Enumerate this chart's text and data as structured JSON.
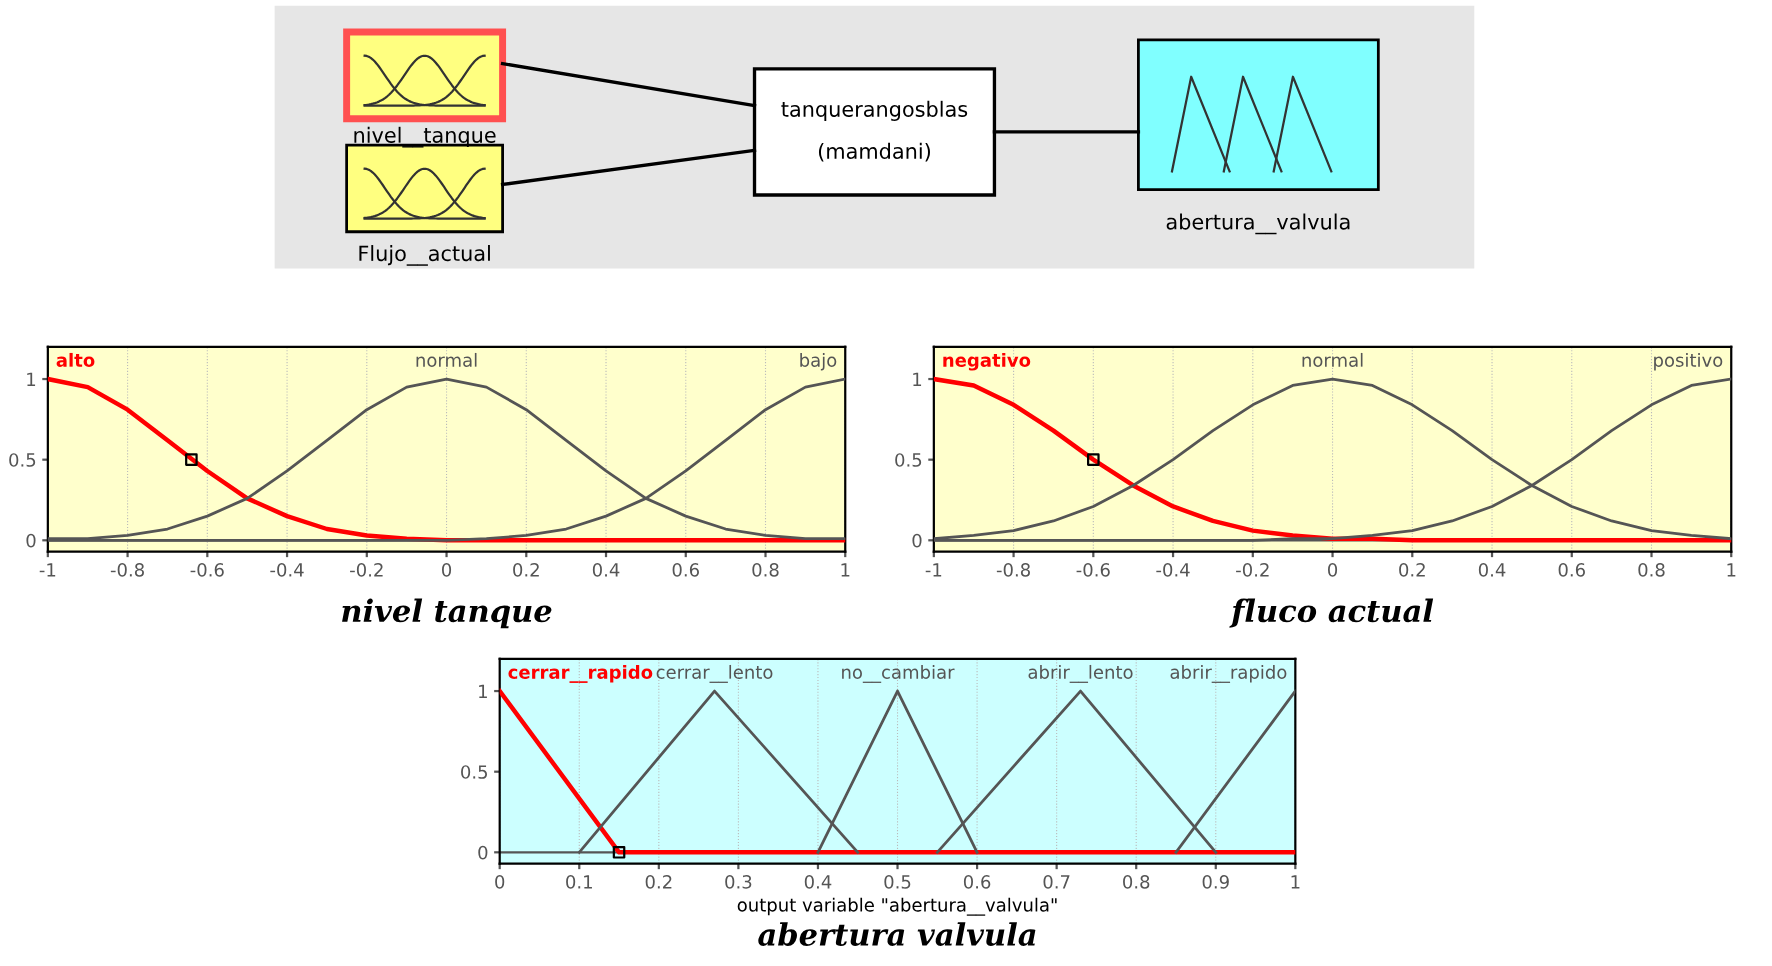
{
  "chart_data": [
    {
      "type": "other",
      "annotations": [
        "nivel__tanque",
        "Flujo__actual",
        "tanquerangosblas",
        "(mamdani)",
        "abertura__valvula"
      ]
    },
    {
      "type": "line",
      "annotations": [
        "nivel tanque"
      ],
      "xlim": [
        -1,
        1
      ],
      "ylim": [
        -0.07,
        1.2
      ],
      "xticks": [
        -1,
        -0.8,
        -0.6,
        -0.4,
        -0.2,
        0,
        0.2,
        0.4,
        0.6,
        0.8,
        1
      ],
      "yticks": [
        0,
        0.5,
        1
      ],
      "grid": "x",
      "x": [
        -1,
        -0.9,
        -0.8,
        -0.7,
        -0.6,
        -0.5,
        -0.4,
        -0.3,
        -0.2,
        -0.1,
        0,
        0.1,
        0.2,
        0.3,
        0.4,
        0.5,
        0.6,
        0.7,
        0.8,
        0.9,
        1
      ],
      "series": [
        {
          "name": "alto",
          "color": "#ff0000",
          "values": [
            1,
            0.95,
            0.81,
            0.62,
            0.43,
            0.26,
            0.15,
            0.07,
            0.03,
            0.01,
            0,
            0,
            0,
            0,
            0,
            0,
            0,
            0,
            0,
            0,
            0
          ]
        },
        {
          "name": "normal",
          "color": "#555555",
          "values": [
            0.01,
            0.01,
            0.03,
            0.07,
            0.15,
            0.26,
            0.43,
            0.62,
            0.81,
            0.95,
            1,
            0.95,
            0.81,
            0.62,
            0.43,
            0.26,
            0.15,
            0.07,
            0.03,
            0.01,
            0.01
          ]
        },
        {
          "name": "bajo",
          "color": "#555555",
          "values": [
            0,
            0,
            0,
            0,
            0,
            0,
            0,
            0,
            0,
            0,
            0,
            0.01,
            0.03,
            0.07,
            0.15,
            0.26,
            0.43,
            0.62,
            0.81,
            0.95,
            1
          ]
        },
        {
          "type": "scatter",
          "marker": "square",
          "color": "#000000",
          "x": [
            -0.64
          ],
          "values": [
            0.5
          ]
        }
      ]
    },
    {
      "type": "line",
      "annotations": [
        "fluco actual"
      ],
      "xlim": [
        -1,
        1
      ],
      "ylim": [
        -0.07,
        1.2
      ],
      "xticks": [
        -1,
        -0.8,
        -0.6,
        -0.4,
        -0.2,
        0,
        0.2,
        0.4,
        0.6,
        0.8,
        1
      ],
      "yticks": [
        0,
        0.5,
        1
      ],
      "grid": "x",
      "x": [
        -1,
        -0.9,
        -0.8,
        -0.7,
        -0.6,
        -0.5,
        -0.4,
        -0.3,
        -0.2,
        -0.1,
        0,
        0.1,
        0.2,
        0.3,
        0.4,
        0.5,
        0.6,
        0.7,
        0.8,
        0.9,
        1
      ],
      "series": [
        {
          "name": "negativo",
          "color": "#ff0000",
          "values": [
            1,
            0.96,
            0.84,
            0.68,
            0.5,
            0.34,
            0.21,
            0.12,
            0.06,
            0.03,
            0.01,
            0.01,
            0,
            0,
            0,
            0,
            0,
            0,
            0,
            0,
            0
          ]
        },
        {
          "name": "normal",
          "color": "#555555",
          "values": [
            0.01,
            0.03,
            0.06,
            0.12,
            0.21,
            0.34,
            0.5,
            0.68,
            0.84,
            0.96,
            1,
            0.96,
            0.84,
            0.68,
            0.5,
            0.34,
            0.21,
            0.12,
            0.06,
            0.03,
            0.01
          ]
        },
        {
          "name": "positivo",
          "color": "#555555",
          "values": [
            0,
            0,
            0,
            0,
            0,
            0,
            0,
            0,
            0,
            0.01,
            0.01,
            0.03,
            0.06,
            0.12,
            0.21,
            0.34,
            0.5,
            0.68,
            0.84,
            0.96,
            1
          ]
        },
        {
          "type": "scatter",
          "marker": "square",
          "color": "#000000",
          "x": [
            -0.6
          ],
          "values": [
            0.5
          ]
        }
      ]
    },
    {
      "type": "line",
      "xlabel": "output variable \"abertura__valvula\"",
      "annotations": [
        "abertura valvula"
      ],
      "xlim": [
        0,
        1
      ],
      "ylim": [
        -0.07,
        1.2
      ],
      "xticks": [
        0,
        0.1,
        0.2,
        0.3,
        0.4,
        0.5,
        0.6,
        0.7,
        0.8,
        0.9,
        1
      ],
      "yticks": [
        0,
        0.5,
        1
      ],
      "grid": "x",
      "series": [
        {
          "name": "cerrar__rapido",
          "color": "#ff0000",
          "x": [
            0,
            0.15,
            1
          ],
          "values": [
            1,
            0,
            0
          ]
        },
        {
          "name": "cerrar__lento",
          "color": "#555555",
          "x": [
            0.1,
            0.27,
            0.45
          ],
          "values": [
            0,
            1,
            0
          ]
        },
        {
          "name": "no__cambiar",
          "color": "#555555",
          "x": [
            0.4,
            0.5,
            0.6
          ],
          "values": [
            0,
            1,
            0
          ]
        },
        {
          "name": "abrir__lento",
          "color": "#555555",
          "x": [
            0.55,
            0.73,
            0.9
          ],
          "values": [
            0,
            1,
            0
          ]
        },
        {
          "name": "abrir__rapido",
          "color": "#555555",
          "x": [
            0.85,
            1
          ],
          "values": [
            0,
            1
          ]
        },
        {
          "type": "scatter",
          "marker": "square",
          "color": "#000000",
          "x": [
            0.15
          ],
          "values": [
            0
          ]
        }
      ]
    }
  ]
}
